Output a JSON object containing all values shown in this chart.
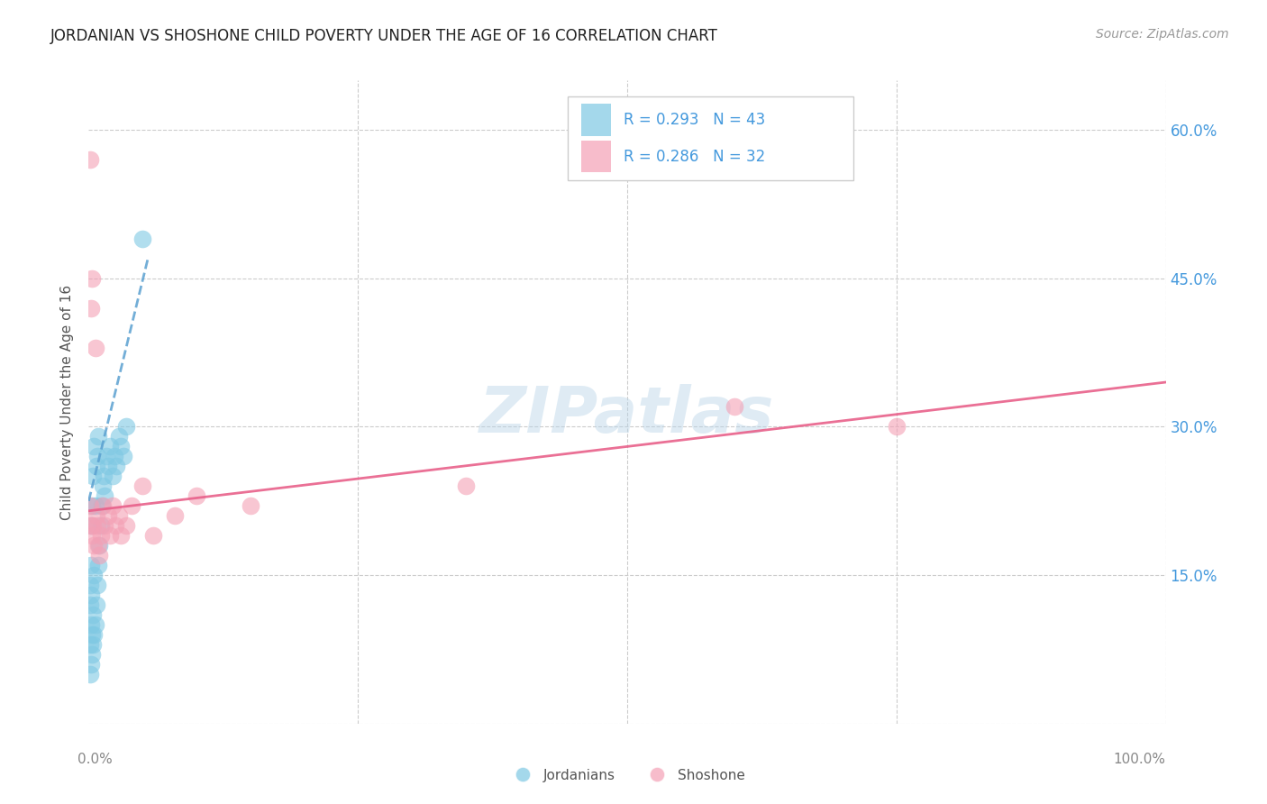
{
  "title": "JORDANIAN VS SHOSHONE CHILD POVERTY UNDER THE AGE OF 16 CORRELATION CHART",
  "source": "Source: ZipAtlas.com",
  "ylabel": "Child Poverty Under the Age of 16",
  "yticks": [
    0.0,
    0.15,
    0.3,
    0.45,
    0.6
  ],
  "ytick_labels": [
    "",
    "15.0%",
    "30.0%",
    "45.0%",
    "60.0%"
  ],
  "xlim": [
    0.0,
    1.0
  ],
  "ylim": [
    0.0,
    0.65
  ],
  "blue_color": "#7ec8e3",
  "pink_color": "#f4a0b5",
  "blue_line_color": "#5aa0d0",
  "pink_line_color": "#e8608a",
  "title_color": "#222222",
  "source_color": "#999999",
  "legend_text_color": "#4499dd",
  "grid_color": "#cccccc",
  "watermark": "ZIPatlas",
  "jordanian_x": [
    0.001,
    0.001,
    0.001,
    0.001,
    0.002,
    0.002,
    0.002,
    0.002,
    0.002,
    0.003,
    0.003,
    0.003,
    0.004,
    0.004,
    0.004,
    0.005,
    0.005,
    0.005,
    0.006,
    0.006,
    0.007,
    0.007,
    0.008,
    0.008,
    0.009,
    0.009,
    0.01,
    0.011,
    0.012,
    0.013,
    0.014,
    0.015,
    0.016,
    0.018,
    0.02,
    0.022,
    0.024,
    0.026,
    0.028,
    0.03,
    0.032,
    0.035,
    0.05
  ],
  "jordanian_y": [
    0.05,
    0.08,
    0.12,
    0.14,
    0.06,
    0.1,
    0.13,
    0.16,
    0.2,
    0.07,
    0.09,
    0.22,
    0.08,
    0.11,
    0.25,
    0.09,
    0.15,
    0.28,
    0.1,
    0.22,
    0.12,
    0.26,
    0.14,
    0.27,
    0.16,
    0.29,
    0.18,
    0.2,
    0.22,
    0.24,
    0.25,
    0.23,
    0.27,
    0.26,
    0.28,
    0.25,
    0.27,
    0.26,
    0.29,
    0.28,
    0.27,
    0.3,
    0.49
  ],
  "shoshone_x": [
    0.001,
    0.001,
    0.002,
    0.002,
    0.003,
    0.003,
    0.004,
    0.005,
    0.006,
    0.007,
    0.008,
    0.009,
    0.01,
    0.011,
    0.013,
    0.015,
    0.018,
    0.02,
    0.022,
    0.025,
    0.028,
    0.03,
    0.035,
    0.04,
    0.05,
    0.06,
    0.08,
    0.1,
    0.15,
    0.35,
    0.6,
    0.75
  ],
  "shoshone_y": [
    0.57,
    0.22,
    0.42,
    0.2,
    0.45,
    0.19,
    0.2,
    0.18,
    0.38,
    0.21,
    0.2,
    0.18,
    0.17,
    0.19,
    0.22,
    0.2,
    0.21,
    0.19,
    0.22,
    0.2,
    0.21,
    0.19,
    0.2,
    0.22,
    0.24,
    0.19,
    0.21,
    0.23,
    0.22,
    0.24,
    0.32,
    0.3
  ],
  "blue_trend_x": [
    0.0,
    0.055
  ],
  "blue_trend_y": [
    0.225,
    0.47
  ],
  "pink_trend_x": [
    0.0,
    1.0
  ],
  "pink_trend_y": [
    0.215,
    0.345
  ]
}
